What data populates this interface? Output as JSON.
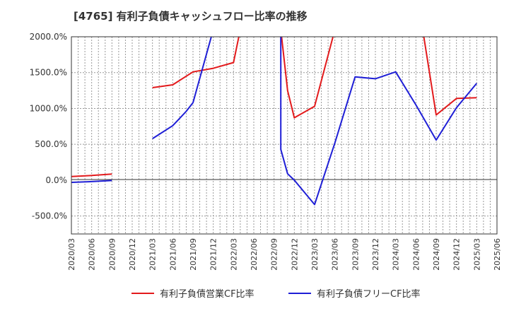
{
  "title": "[4765]  有利子負債キャッシュフロー比率の推移",
  "chart_data": {
    "type": "line",
    "title": "[4765]  有利子負債キャッシュフロー比率の推移",
    "xlabel": "",
    "ylabel": "",
    "ylim": [
      -750,
      2000
    ],
    "yticks": [
      -500,
      0,
      500,
      1000,
      1500,
      2000
    ],
    "ytick_labels": [
      "-500.0%",
      "0.0%",
      "500.0%",
      "1000.0%",
      "1500.0%",
      "2000.0%"
    ],
    "xlim": [
      "2020/03",
      "2025/06"
    ],
    "x_tick_labels": [
      "2020/03",
      "2020/06",
      "2020/09",
      "2020/12",
      "2021/03",
      "2021/06",
      "2021/09",
      "2021/12",
      "2022/03",
      "2022/06",
      "2022/09",
      "2022/12",
      "2023/03",
      "2023/06",
      "2023/09",
      "2023/12",
      "2024/03",
      "2024/06",
      "2024/09",
      "2024/12",
      "2025/03",
      "2025/06"
    ],
    "grid": true,
    "legend_position": "bottom",
    "series": [
      {
        "name": "有利子負債営業CF比率",
        "color": "#e31a1c",
        "points": [
          [
            "2020/03",
            50
          ],
          [
            "2020/06",
            65
          ],
          [
            "2020/09",
            85
          ],
          null,
          [
            "2021/03",
            1290
          ],
          [
            "2021/06",
            1330
          ],
          [
            "2021/09",
            1510
          ],
          [
            "2021/12",
            1560
          ],
          [
            "2022/03",
            1640
          ],
          [
            "2022/04",
            2100
          ],
          null,
          [
            "2022/10",
            2100
          ],
          [
            "2022/11",
            1250
          ],
          [
            "2022/12",
            870
          ],
          [
            "2023/03",
            1030
          ],
          [
            "2023/06",
            2100
          ],
          null,
          [
            "2024/07",
            2100
          ],
          [
            "2024/09",
            910
          ],
          [
            "2024/12",
            1140
          ],
          [
            "2025/03",
            1150
          ]
        ]
      },
      {
        "name": "有利子負債フリーCF比率",
        "color": "#1f1fd6",
        "points": [
          [
            "2020/03",
            -30
          ],
          [
            "2020/06",
            -20
          ],
          [
            "2020/09",
            -5
          ],
          null,
          [
            "2021/03",
            580
          ],
          [
            "2021/06",
            760
          ],
          [
            "2021/07",
            860
          ],
          [
            "2021/08",
            960
          ],
          [
            "2021/09",
            1080
          ],
          [
            "2021/12",
            2100
          ],
          null,
          [
            "2022/10",
            2100
          ],
          [
            "2022/10",
            430
          ],
          [
            "2022/11",
            90
          ],
          [
            "2022/12",
            0
          ],
          [
            "2023/03",
            -340
          ],
          [
            "2023/06",
            520
          ],
          [
            "2023/09",
            1440
          ],
          [
            "2023/12",
            1415
          ],
          [
            "2024/03",
            1510
          ],
          [
            "2024/06",
            1050
          ],
          [
            "2024/09",
            560
          ],
          [
            "2024/12",
            1010
          ],
          [
            "2025/03",
            1350
          ]
        ]
      }
    ]
  }
}
